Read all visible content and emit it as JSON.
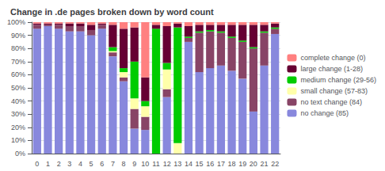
{
  "chart_data": {
    "type": "bar",
    "subtitle": "Change in .de pages broken down by word count",
    "categories": [
      0,
      1,
      2,
      3,
      4,
      5,
      6,
      7,
      8,
      9,
      10,
      11,
      12,
      13,
      14,
      15,
      16,
      17,
      18,
      19,
      20,
      21,
      22
    ],
    "series": [
      {
        "name": "no change (85)",
        "color": "#8888DD",
        "values": [
          95,
          97,
          95,
          93,
          93,
          90,
          95,
          74,
          55,
          19,
          18,
          0,
          43,
          0,
          85,
          62,
          65,
          67,
          63,
          57,
          32,
          67,
          91
        ]
      },
      {
        "name": "no text change (84)",
        "color": "#884466",
        "values": [
          3,
          1,
          3,
          4,
          4,
          4,
          3,
          3,
          3,
          15,
          10,
          0,
          6,
          0,
          3,
          30,
          28,
          25,
          25,
          28,
          48,
          25,
          4
        ]
      },
      {
        "name": "small change (57-83)",
        "color": "#FFFFAA",
        "values": [
          0,
          0,
          0,
          0,
          0,
          0,
          0,
          1,
          4,
          8,
          8,
          0,
          15,
          8,
          0,
          0,
          0,
          0,
          0,
          0,
          0,
          0,
          0
        ]
      },
      {
        "name": "medium change (29-56)",
        "color": "#00CC00",
        "values": [
          0,
          0,
          0,
          0,
          0,
          0,
          0,
          3,
          3,
          28,
          4,
          95,
          5,
          88,
          1,
          1,
          1,
          1,
          1,
          1,
          1,
          1,
          1
        ]
      },
      {
        "name": "large change (1-28)",
        "color": "#660033",
        "values": [
          1,
          1,
          1,
          2,
          2,
          4,
          1,
          17,
          30,
          26,
          18,
          3,
          28,
          3,
          8,
          5,
          4,
          5,
          9,
          12,
          17,
          5,
          3
        ]
      },
      {
        "name": "complete change (0)",
        "color": "#FF8080",
        "values": [
          1,
          1,
          1,
          1,
          1,
          2,
          1,
          2,
          5,
          4,
          42,
          2,
          3,
          1,
          3,
          2,
          2,
          2,
          2,
          2,
          2,
          2,
          1
        ]
      }
    ],
    "stacked": true,
    "ylim": [
      0,
      100
    ],
    "yticks": [
      {
        "value": 0,
        "label": "0%"
      },
      {
        "value": 10,
        "label": "10%"
      },
      {
        "value": 20,
        "label": "20%"
      },
      {
        "value": 30,
        "label": "30%"
      },
      {
        "value": 40,
        "label": "40%"
      },
      {
        "value": 50,
        "label": "50%"
      },
      {
        "value": 60,
        "label": "60%"
      },
      {
        "value": 70,
        "label": "70%"
      },
      {
        "value": 80,
        "label": "80%"
      },
      {
        "value": 90,
        "label": "90%"
      },
      {
        "value": 100,
        "label": "100%"
      }
    ],
    "grid": true,
    "legend": "right"
  }
}
